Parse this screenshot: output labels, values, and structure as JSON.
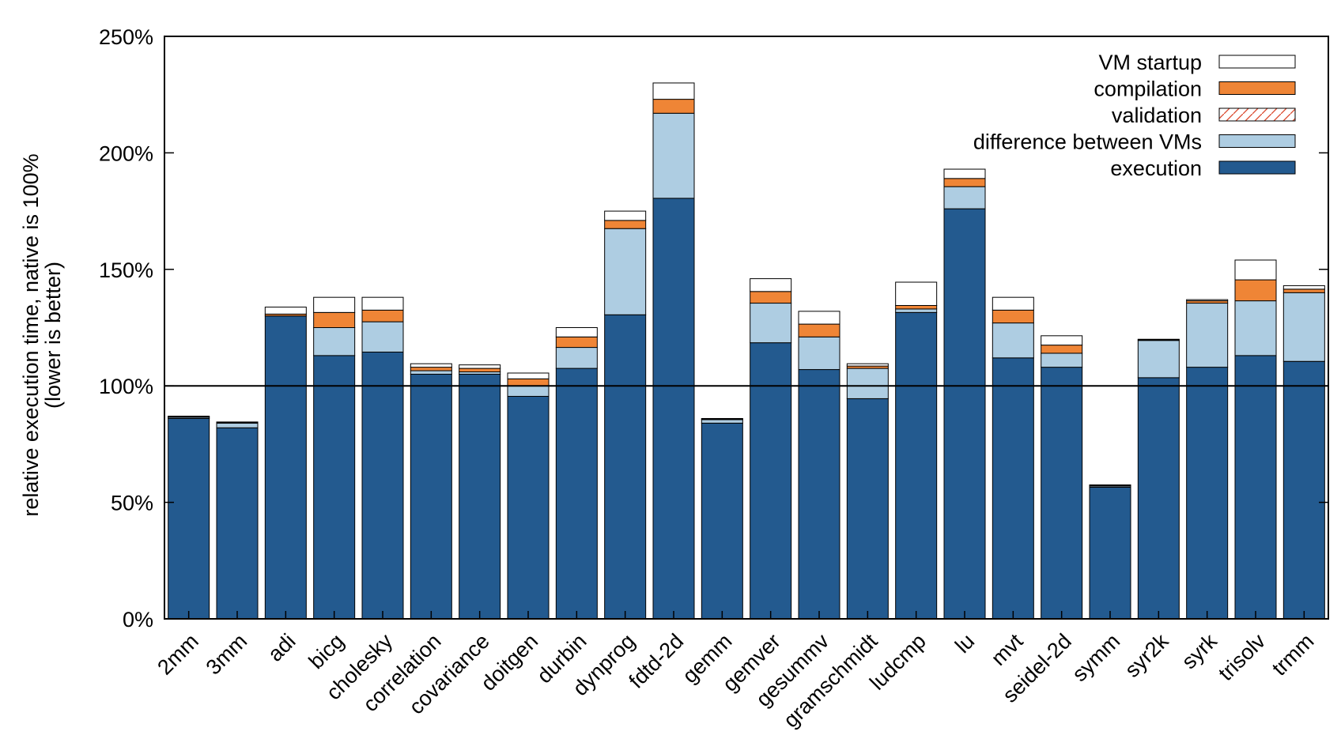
{
  "chart_data": {
    "type": "bar",
    "stacked": true,
    "title": "",
    "xlabel": "",
    "ylabel": [
      "relative execution time, native is 100%",
      "(lower is better)"
    ],
    "ylim": [
      0,
      250
    ],
    "yticks": [
      0,
      50,
      100,
      150,
      200,
      250
    ],
    "ytick_format": "{}%",
    "reference_line": 100,
    "grid": false,
    "legend_position": "top-right",
    "categories": [
      "2mm",
      "3mm",
      "adi",
      "bicg",
      "cholesky",
      "correlation",
      "covariance",
      "doitgen",
      "durbin",
      "dynprog",
      "fdtd-2d",
      "gemm",
      "gemver",
      "gesummv",
      "gramschmidt",
      "ludcmp",
      "lu",
      "mvt",
      "seidel-2d",
      "symm",
      "syr2k",
      "syrk",
      "trisolv",
      "trmm"
    ],
    "series": [
      {
        "name": "execution",
        "color": "#235a8f",
        "values": [
          86,
          82,
          130,
          113,
          114.5,
          105,
          105,
          95.5,
          107.5,
          130.5,
          180.5,
          84,
          118.5,
          107,
          94.5,
          131.5,
          176,
          112,
          108,
          56.5,
          103.5,
          108,
          113,
          110.5
        ]
      },
      {
        "name": "difference between VMs",
        "color": "#aecde2",
        "values": [
          0.5,
          2,
          0,
          12,
          13,
          1.5,
          1,
          4.5,
          9,
          37,
          36.5,
          1.5,
          17,
          14,
          13,
          1.5,
          9.5,
          15,
          6,
          0.5,
          16,
          27.5,
          23.5,
          29.5
        ]
      },
      {
        "name": "validation",
        "color": "#d9472b",
        "pattern": "hatch",
        "values": [
          0,
          0,
          0,
          0,
          0,
          0,
          0,
          0,
          0,
          0,
          0,
          0,
          0,
          0,
          0,
          0,
          0,
          0,
          0,
          0,
          0,
          0,
          0,
          0
        ]
      },
      {
        "name": "compilation",
        "color": "#ef8536",
        "values": [
          0.2,
          0.2,
          0.8,
          6.5,
          5,
          1.5,
          1.5,
          3,
          4.5,
          3.5,
          6,
          0.3,
          5,
          5.5,
          1,
          1.5,
          3.5,
          5.5,
          3.5,
          0.3,
          0.3,
          1,
          9,
          1.5
        ]
      },
      {
        "name": "VM startup",
        "color": "#ffffff",
        "values": [
          0.3,
          0.3,
          3,
          6.5,
          5.5,
          1.5,
          1.5,
          2.5,
          4,
          4,
          7,
          0.2,
          5.5,
          5.5,
          1,
          10,
          4,
          5.5,
          4,
          0.2,
          0.2,
          0.5,
          8.5,
          1.5
        ]
      }
    ],
    "legend_order": [
      "VM startup",
      "compilation",
      "validation",
      "difference between VMs",
      "execution"
    ]
  }
}
